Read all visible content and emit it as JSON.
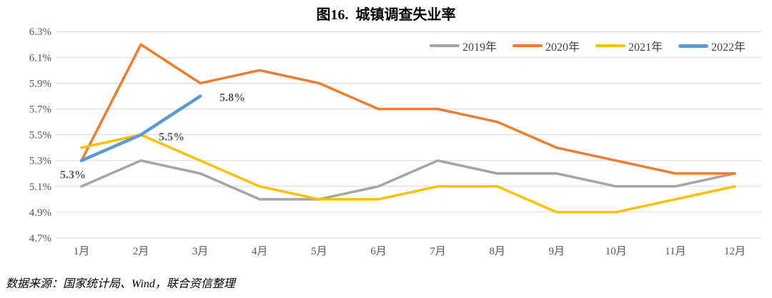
{
  "title": "图16.  城镇调查失业率",
  "footer": {
    "source": "数据来源：国家统计局、Wind，联合资信整理"
  },
  "colors": {
    "grid": "#D9D9D9",
    "axis_text": "#595959",
    "legend_text": "#404040",
    "series_2019": "#A5A5A5",
    "series_2020": "#ED7D31",
    "series_2021": "#FFC000",
    "series_2022": "#5B9BD5"
  },
  "chart_data": {
    "type": "line",
    "title": "图16.  城镇调查失业率",
    "xlabel": "",
    "ylabel": "",
    "categories": [
      "1月",
      "2月",
      "3月",
      "4月",
      "5月",
      "6月",
      "7月",
      "8月",
      "9月",
      "10月",
      "11月",
      "12月"
    ],
    "y_ticks": [
      "6.3%",
      "6.1%",
      "5.9%",
      "5.7%",
      "5.5%",
      "5.3%",
      "5.1%",
      "4.9%",
      "4.7%"
    ],
    "ylim": [
      4.7,
      6.3
    ],
    "grid": "horizontal",
    "legend_position": "top-right",
    "series": [
      {
        "name": "2019年",
        "color": "#A5A5A5",
        "values": [
          5.1,
          5.3,
          5.2,
          5.0,
          5.0,
          5.1,
          5.3,
          5.2,
          5.2,
          5.1,
          5.1,
          5.2
        ]
      },
      {
        "name": "2020年",
        "color": "#ED7D31",
        "values": [
          5.3,
          6.2,
          5.9,
          6.0,
          5.9,
          5.7,
          5.7,
          5.6,
          5.4,
          5.3,
          5.2,
          5.2
        ]
      },
      {
        "name": "2021年",
        "color": "#FFC000",
        "values": [
          5.4,
          5.5,
          5.3,
          5.1,
          5.0,
          5.0,
          5.1,
          5.1,
          4.9,
          4.9,
          5.0,
          5.1
        ]
      },
      {
        "name": "2022年",
        "color": "#5B9BD5",
        "values": [
          5.3,
          5.5,
          5.8
        ],
        "point_labels": [
          "5.3%",
          "5.5%",
          "5.8%"
        ]
      }
    ]
  }
}
